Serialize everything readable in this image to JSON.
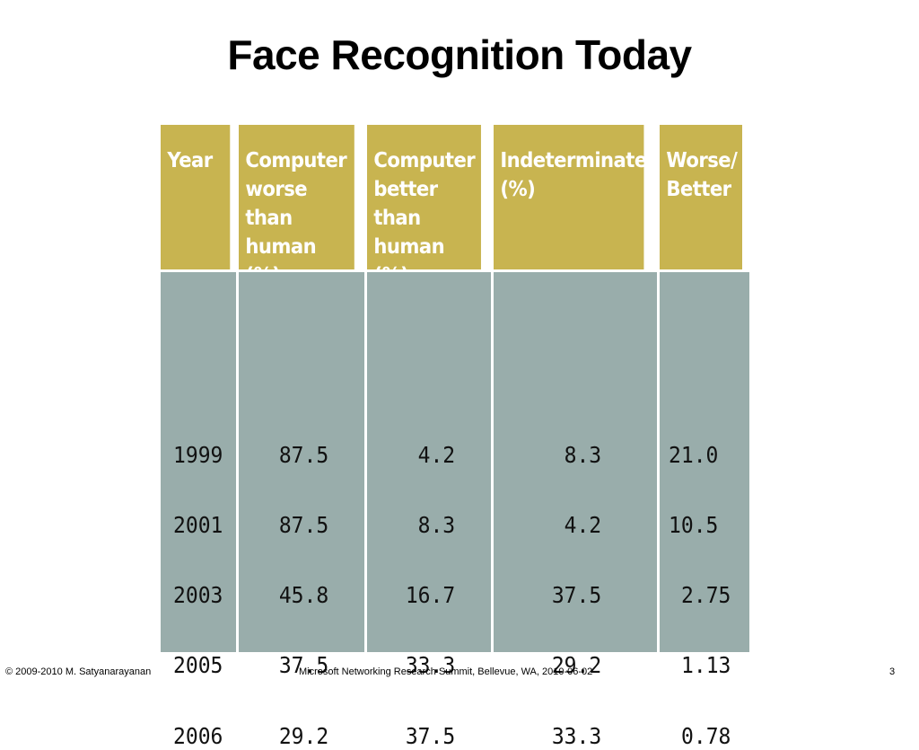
{
  "slide": {
    "title": "Face Recognition Today"
  },
  "table": {
    "headers": [
      "Year",
      "Computer\nworse\nthan\nhuman (%)",
      "Computer\nbetter\nthan\nhuman (%)",
      "Indeterminate\n(%)",
      "Worse/\nBetter"
    ],
    "rows": [
      {
        "year": "1999",
        "worse": "87.5",
        "better": "4.2",
        "indeterminate": "8.3",
        "ratio": "21.0"
      },
      {
        "year": "2001",
        "worse": "87.5",
        "better": "8.3",
        "indeterminate": "4.2",
        "ratio": "10.5"
      },
      {
        "year": "2003",
        "worse": "45.8",
        "better": "16.7",
        "indeterminate": "37.5",
        "ratio": "2.75"
      },
      {
        "year": "2005",
        "worse": "37.5",
        "better": "33.3",
        "indeterminate": "29.2",
        "ratio": "1.13"
      },
      {
        "year": "2006",
        "worse": "29.2",
        "better": "37.5",
        "indeterminate": "33.3",
        "ratio": "0.78"
      }
    ]
  },
  "colors": {
    "header_bg": "#c8b450",
    "body_bg": "#99adab",
    "header_text": "#ffffff"
  },
  "footer": {
    "copyright": "© 2009-2010  M. Satyanarayanan",
    "event": "Microsoft Networking Research Summit, Bellevue, WA,  2010-06-02",
    "page_number": "3"
  }
}
